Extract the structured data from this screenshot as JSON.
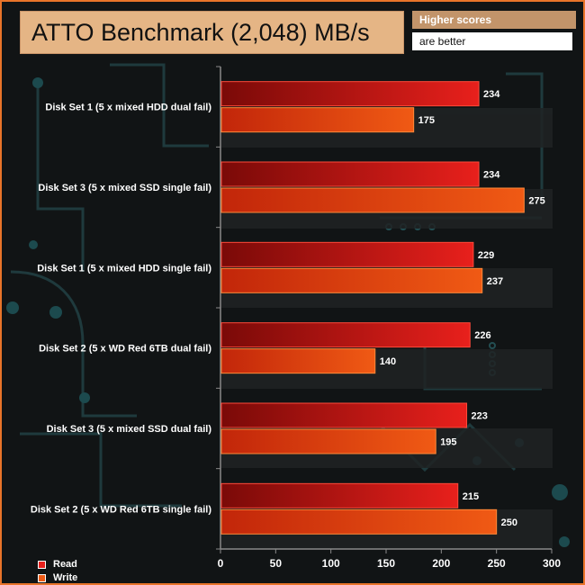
{
  "header": {
    "title": "ATTO Benchmark (2,048) MB/s",
    "note_line1": "Higher scores",
    "note_line2": "are better"
  },
  "colors": {
    "read": "#e8201c",
    "write": "#f05a14",
    "frame": "#e8742a",
    "title_bg": "#e5b585",
    "note_bg": "#c2946a"
  },
  "chart_data": {
    "type": "bar",
    "orientation": "horizontal",
    "title": "ATTO Benchmark (2,048) MB/s",
    "categories": [
      "Disk Set 1 (5 x mixed HDD dual fail)",
      "Disk Set 3 (5 x mixed SSD single fail)",
      "Disk Set 1 (5 x mixed HDD single fail)",
      "Disk Set 2 (5 x WD Red 6TB dual fail)",
      "Disk Set 3 (5 x mixed SSD dual fail)",
      "Disk Set 2 (5 x WD Red 6TB single fail)"
    ],
    "series": [
      {
        "name": "Read",
        "values": [
          234,
          234,
          229,
          226,
          223,
          215
        ]
      },
      {
        "name": "Write",
        "values": [
          175,
          275,
          237,
          140,
          195,
          250
        ]
      }
    ],
    "xlim": [
      0,
      300
    ],
    "xticks": [
      0,
      50,
      100,
      150,
      200,
      250,
      300
    ],
    "xlabel": "",
    "ylabel": "",
    "legend_position": "bottom-left"
  }
}
